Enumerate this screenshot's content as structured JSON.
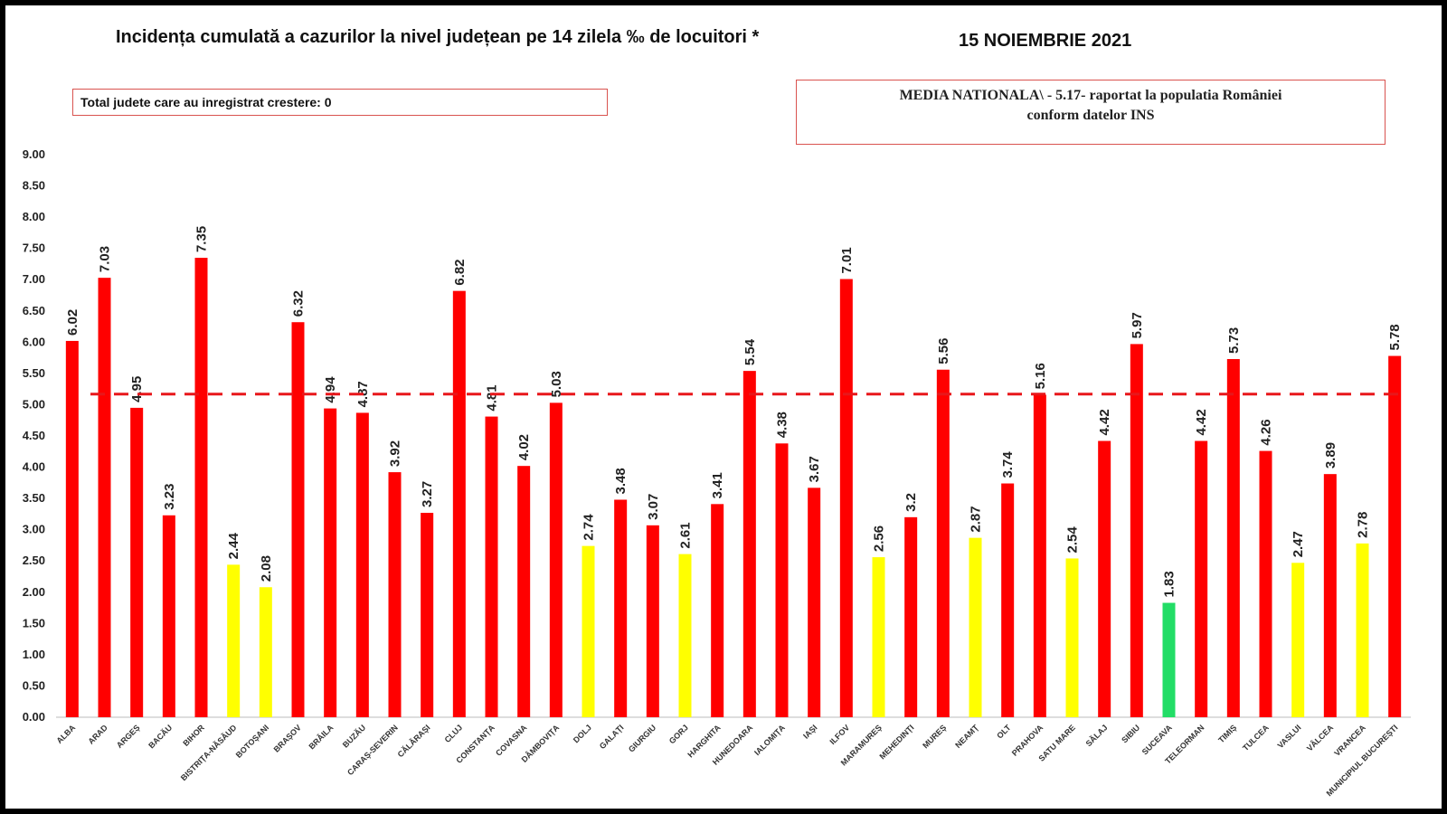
{
  "header": {
    "title": "Incidența cumulată a cazurilor la nivel județean pe 14 zilela ‰ de locuitori *",
    "date": "15 NOIEMBRIE 2021",
    "increase_note": "Total judete care au inregistrat crestere: 0",
    "national_line1": "MEDIA NATIONALA\\ - 5.17-  raportat la populatia României",
    "national_line2": "conform datelor INS"
  },
  "colors": {
    "red": "#ff0000",
    "yellow": "#ffff00",
    "green": "#22dd66",
    "reference": "#e8171b"
  },
  "chart_data": {
    "type": "bar",
    "title": "Incidența cumulată a cazurilor la nivel județean pe 14 zilela ‰ de locuitori *",
    "ylim": [
      0,
      9
    ],
    "yticks": [
      "0.00",
      "0.50",
      "1.00",
      "1.50",
      "2.00",
      "2.50",
      "3.00",
      "3.50",
      "4.00",
      "4.50",
      "5.00",
      "5.50",
      "6.00",
      "6.50",
      "7.00",
      "7.50",
      "8.00",
      "8.50",
      "9.00"
    ],
    "reference_line": 5.17,
    "categories": [
      "ALBA",
      "ARAD",
      "ARGEȘ",
      "BACĂU",
      "BIHOR",
      "BISTRIȚA-NĂSĂUD",
      "BOTOȘANI",
      "BRAȘOV",
      "BRĂILA",
      "BUZĂU",
      "CARAȘ-SEVERIN",
      "CĂLĂRAȘI",
      "CLUJ",
      "CONSTANȚA",
      "COVASNA",
      "DÂMBOVIȚA",
      "DOLJ",
      "GALAȚI",
      "GIURGIU",
      "GORJ",
      "HARGHITA",
      "HUNEDOARA",
      "IALOMIȚA",
      "IAȘI",
      "ILFOV",
      "MARAMUREȘ",
      "MEHEDINȚI",
      "MUREȘ",
      "NEAMȚ",
      "OLT",
      "PRAHOVA",
      "SATU MARE",
      "SĂLAJ",
      "SIBIU",
      "SUCEAVA",
      "TELEORMAN",
      "TIMIȘ",
      "TULCEA",
      "VASLUI",
      "VÂLCEA",
      "VRANCEA",
      "MUNICIPIUL BUCUREȘTI"
    ],
    "values": [
      6.02,
      7.03,
      4.95,
      3.23,
      7.35,
      2.44,
      2.08,
      6.32,
      4.94,
      4.87,
      3.92,
      3.27,
      6.82,
      4.81,
      4.02,
      5.03,
      2.74,
      3.48,
      3.07,
      2.61,
      3.41,
      5.54,
      4.38,
      3.67,
      7.01,
      2.56,
      3.2,
      5.56,
      2.87,
      3.74,
      5.16,
      2.54,
      4.42,
      5.97,
      1.83,
      4.42,
      5.73,
      4.26,
      2.47,
      3.89,
      2.78,
      5.78
    ],
    "value_labels": [
      "6.02",
      "7.03",
      "4.95",
      "3.23",
      "7.35",
      "2.44",
      "2.08",
      "6.32",
      "4.94",
      "4.87",
      "3.92",
      "3.27",
      "6.82",
      "4.81",
      "4.02",
      "5.03",
      "2.74",
      "3.48",
      "3.07",
      "2.61",
      "3.41",
      "5.54",
      "4.38",
      "3.67",
      "7.01",
      "2.56",
      "3.2",
      "5.56",
      "2.87",
      "3.74",
      "5.16",
      "2.54",
      "4.42",
      "5.97",
      "1.83",
      "4.42",
      "5.73",
      "4.26",
      "2.47",
      "3.89",
      "2.78",
      "5.78"
    ],
    "bar_colors": [
      "red",
      "red",
      "red",
      "red",
      "red",
      "yellow",
      "yellow",
      "red",
      "red",
      "red",
      "red",
      "red",
      "red",
      "red",
      "red",
      "red",
      "yellow",
      "red",
      "red",
      "yellow",
      "red",
      "red",
      "red",
      "red",
      "red",
      "yellow",
      "red",
      "red",
      "yellow",
      "red",
      "red",
      "yellow",
      "red",
      "red",
      "green",
      "red",
      "red",
      "red",
      "yellow",
      "red",
      "yellow",
      "red"
    ]
  }
}
